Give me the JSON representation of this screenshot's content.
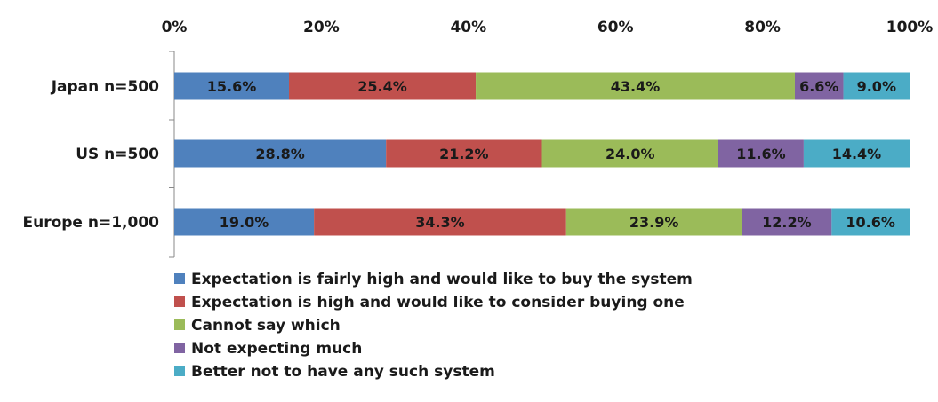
{
  "chart_data": {
    "type": "bar",
    "orientation": "horizontal",
    "stacked": true,
    "percent_stacked": true,
    "title": "",
    "xlabel": "",
    "ylabel": "",
    "xlim": [
      0,
      100
    ],
    "x_ticks": [
      0,
      20,
      40,
      60,
      80,
      100
    ],
    "x_tick_labels": [
      "0%",
      "20%",
      "40%",
      "60%",
      "80%",
      "100%"
    ],
    "x_axis_position": "top",
    "grid": false,
    "legend_position": "bottom",
    "categories": [
      "Japan n=500",
      "US n=500",
      "Europe n=1,000"
    ],
    "series": [
      {
        "name": "Expectation is fairly high and would like to buy the system",
        "color": "#4F81BD",
        "values": [
          15.6,
          28.8,
          19.0
        ],
        "labels": [
          "15.6%",
          "28.8%",
          "19.0%"
        ]
      },
      {
        "name": "Expectation is high and would like to consider buying one",
        "color": "#C0504D",
        "values": [
          25.4,
          21.2,
          34.3
        ],
        "labels": [
          "25.4%",
          "21.2%",
          "34.3%"
        ]
      },
      {
        "name": "Cannot say which",
        "color": "#9BBB59",
        "values": [
          43.4,
          24.0,
          23.9
        ],
        "labels": [
          "43.4%",
          "24.0%",
          "23.9%"
        ]
      },
      {
        "name": "Not expecting much",
        "color": "#8064A2",
        "values": [
          6.6,
          11.6,
          12.2
        ],
        "labels": [
          "6.6%",
          "11.6%",
          "12.2%"
        ]
      },
      {
        "name": "Better not to have any such system",
        "color": "#4BACC6",
        "values": [
          9.0,
          14.4,
          10.6
        ],
        "labels": [
          "9.0%",
          "14.4%",
          "10.6%"
        ]
      }
    ]
  }
}
